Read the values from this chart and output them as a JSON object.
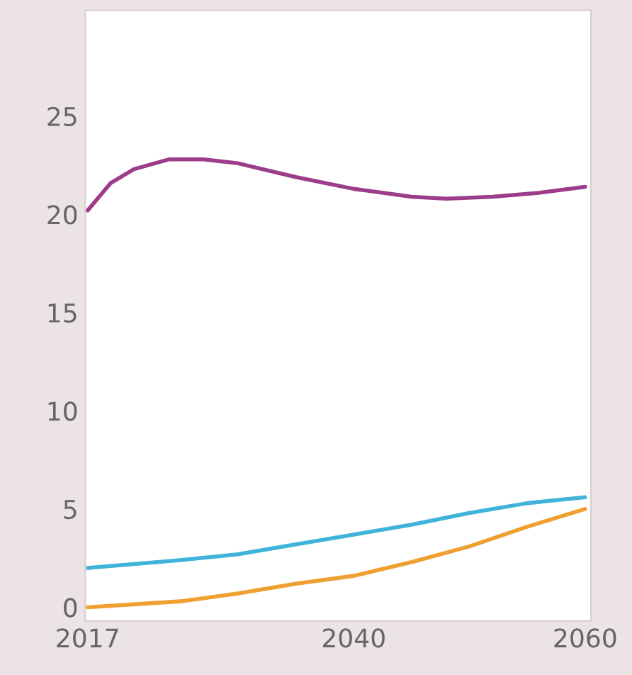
{
  "chart_data": {
    "type": "line",
    "x": [
      2017,
      2019,
      2021,
      2024,
      2027,
      2030,
      2035,
      2040,
      2045,
      2048,
      2052,
      2056,
      2060
    ],
    "series": [
      {
        "color": "#9b3d8a",
        "values": [
          20.2,
          21.6,
          22.3,
          22.8,
          22.8,
          22.6,
          21.9,
          21.3,
          20.9,
          20.8,
          20.9,
          21.1,
          21.4
        ]
      },
      {
        "color": "#3fb3d9",
        "x": [
          2017,
          2025,
          2030,
          2035,
          2040,
          2045,
          2050,
          2055,
          2060
        ],
        "values": [
          2.0,
          2.4,
          2.7,
          3.2,
          3.7,
          4.2,
          4.8,
          5.3,
          5.6
        ]
      },
      {
        "color": "#f0a030",
        "x": [
          2017,
          2025,
          2030,
          2035,
          2040,
          2045,
          2050,
          2055,
          2060
        ],
        "values": [
          0,
          0.3,
          0.7,
          1.2,
          1.6,
          2.3,
          3.1,
          4.1,
          5.0
        ]
      }
    ],
    "xlim": [
      2016.8,
      2060.5
    ],
    "xticks": [
      2017,
      2040,
      2060
    ],
    "ylim": [
      -0.7,
      30.4
    ],
    "yticks": [
      0,
      5,
      10,
      15,
      20,
      25
    ],
    "grid": false
  }
}
